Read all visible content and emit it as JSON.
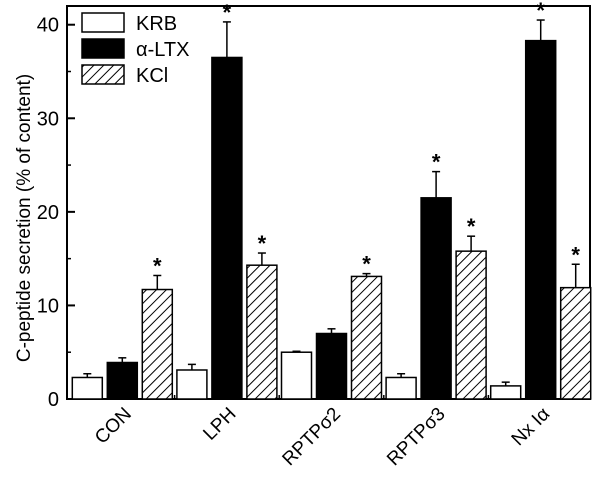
{
  "chart_data": {
    "type": "bar",
    "ylabel": "C-peptide secretion (% of content)",
    "xlabel": "",
    "ylim": [
      0,
      42
    ],
    "yticks": [
      0,
      10,
      20,
      30,
      40
    ],
    "categories": [
      "CON",
      "LPH",
      "RPTPσ2",
      "RPTPσ3",
      "Nx Iα"
    ],
    "series": [
      {
        "name": "KRB",
        "fill": "white",
        "values": [
          2.3,
          3.1,
          5.0,
          2.3,
          1.4
        ],
        "errors": [
          0.4,
          0.6,
          0.1,
          0.4,
          0.4
        ],
        "significant": [
          false,
          false,
          false,
          false,
          false
        ]
      },
      {
        "name": "α-LTX",
        "fill": "black",
        "values": [
          3.9,
          36.5,
          7.0,
          21.5,
          38.3
        ],
        "errors": [
          0.5,
          3.8,
          0.5,
          2.8,
          2.2
        ],
        "significant": [
          false,
          true,
          false,
          true,
          true
        ]
      },
      {
        "name": "KCl",
        "fill": "hatch",
        "values": [
          11.7,
          14.3,
          13.1,
          15.8,
          11.9
        ],
        "errors": [
          1.5,
          1.3,
          0.3,
          1.6,
          2.5
        ],
        "significant": [
          true,
          true,
          true,
          true,
          true
        ]
      }
    ],
    "significance_marker": "*",
    "legend_position": "top-left",
    "grid": false
  },
  "colors": {
    "bar_outline": "#000000",
    "dark_bar": "#000000",
    "light_bar": "#ffffff"
  }
}
